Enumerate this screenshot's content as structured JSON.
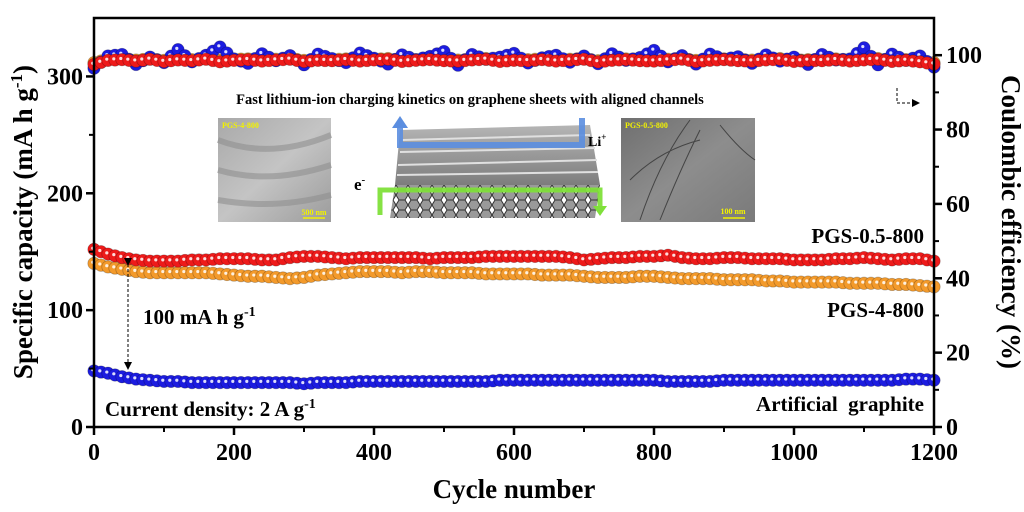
{
  "chart_data": {
    "type": "scatter",
    "title": "Fast lithium-ion charging kinetics on graphene sheets with aligned channels",
    "xlabel": "Cycle number",
    "ylabel_left": {
      "main": "Specific capacity (mA h g",
      "sup": "-1",
      "end": ")"
    },
    "ylabel_right": "Coulombic efficiency (%)",
    "xlim": [
      0,
      1200
    ],
    "ylim_left": [
      0,
      350
    ],
    "ylim_right": [
      0,
      110
    ],
    "x_ticks": [
      0,
      200,
      400,
      600,
      800,
      1000,
      1200
    ],
    "y_left_ticks": [
      0,
      100,
      200,
      300
    ],
    "y_right_ticks": [
      0,
      20,
      40,
      60,
      80,
      100
    ],
    "grid": false,
    "x_step": 20,
    "colors": {
      "PGS-0.5-800": "#ee1a1a",
      "PGS-4-800": "#f39a2b",
      "Artificial graphite": "#1c1ce0"
    },
    "series": [
      {
        "name": "PGS-4-800",
        "axis": "right",
        "kind": "coulombic_efficiency",
        "values": [
          98.0,
          98.9,
          99.1,
          98.7,
          99.0,
          98.6,
          99.0,
          98.8,
          99.1,
          98.6,
          98.9,
          99.0,
          98.7,
          98.9,
          99.1,
          98.6,
          98.8,
          98.8,
          99.0,
          98.7,
          98.9,
          99.1,
          98.6,
          98.8,
          99.0,
          98.8,
          98.7,
          98.9,
          99.1,
          98.6,
          98.8,
          98.8,
          99.0,
          98.7,
          98.9,
          99.1,
          98.5,
          98.8,
          99.0,
          98.8,
          98.7,
          98.9,
          99.1,
          98.6,
          98.8,
          99.0,
          98.8,
          98.7,
          98.9,
          99.1,
          98.6,
          98.8,
          98.8,
          99.0,
          98.7,
          98.9,
          99.1,
          98.6,
          98.8,
          98.5,
          98.0
        ]
      },
      {
        "name": "Artificial graphite",
        "axis": "right",
        "kind": "coulombic_efficiency",
        "values": [
          96.5,
          99.8,
          100.2,
          97.5,
          99.5,
          98.0,
          101.5,
          98.2,
          100.0,
          102.2,
          99.0,
          97.8,
          100.4,
          98.5,
          99.9,
          97.4,
          100.3,
          99.1,
          98.0,
          100.6,
          99.2,
          97.6,
          100.1,
          98.8,
          99.7,
          101.0,
          97.3,
          100.2,
          98.9,
          99.5,
          100.5,
          97.9,
          99.3,
          100.0,
          98.1,
          99.8,
          97.7,
          100.4,
          98.6,
          99.4,
          101.3,
          98.2,
          99.9,
          97.6,
          100.3,
          98.9,
          99.6,
          97.8,
          100.1,
          98.4,
          99.5,
          97.5,
          100.2,
          98.7,
          99.0,
          102.0,
          97.4,
          100.3,
          98.6,
          99.8,
          96.8
        ]
      },
      {
        "name": "PGS-0.5-800",
        "axis": "right",
        "kind": "coulombic_efficiency",
        "values": [
          97.5,
          98.6,
          98.8,
          98.4,
          98.9,
          98.3,
          98.7,
          98.5,
          98.9,
          98.2,
          98.6,
          98.8,
          98.4,
          98.7,
          98.9,
          98.3,
          98.6,
          98.5,
          98.8,
          98.4,
          98.7,
          98.9,
          98.3,
          98.6,
          98.8,
          98.5,
          98.4,
          98.7,
          98.9,
          98.3,
          98.6,
          98.5,
          98.8,
          98.4,
          98.7,
          98.9,
          98.2,
          98.6,
          98.8,
          98.5,
          98.4,
          98.7,
          98.9,
          98.3,
          98.6,
          98.8,
          98.5,
          98.4,
          98.7,
          98.9,
          98.3,
          98.6,
          98.5,
          98.8,
          98.4,
          98.7,
          98.9,
          98.3,
          98.6,
          98.2,
          97.6
        ]
      },
      {
        "name": "PGS-4-800",
        "axis": "left",
        "kind": "capacity",
        "values": [
          140,
          137,
          135,
          133,
          132,
          132,
          132,
          132,
          132,
          131,
          130,
          129,
          129,
          128,
          127,
          128,
          130,
          131,
          132,
          133,
          133,
          133,
          132,
          133,
          133,
          132,
          132,
          132,
          131,
          131,
          131,
          131,
          130,
          130,
          130,
          129,
          128,
          128,
          128,
          129,
          129,
          128,
          127,
          127,
          127,
          126,
          126,
          126,
          125,
          125,
          124,
          124,
          124,
          124,
          123,
          123,
          123,
          122,
          122,
          121,
          120
        ]
      },
      {
        "name": "PGS-0.5-800",
        "axis": "left",
        "kind": "capacity",
        "values": [
          152,
          148,
          145,
          143,
          142,
          142,
          142,
          143,
          143,
          144,
          144,
          144,
          143,
          143,
          145,
          146,
          146,
          145,
          144,
          145,
          145,
          145,
          145,
          145,
          144,
          145,
          145,
          145,
          146,
          146,
          146,
          146,
          146,
          146,
          145,
          143,
          144,
          145,
          145,
          146,
          146,
          147,
          145,
          144,
          144,
          145,
          145,
          144,
          144,
          144,
          143,
          143,
          143,
          144,
          144,
          145,
          144,
          143,
          144,
          144,
          142
        ]
      },
      {
        "name": "Artificial graphite",
        "axis": "left",
        "kind": "capacity",
        "values": [
          48,
          46,
          43,
          41,
          40,
          39,
          39,
          38,
          38,
          38,
          38,
          38,
          38,
          38,
          38,
          37,
          38,
          38,
          38,
          39,
          39,
          39,
          39,
          39,
          39,
          39,
          39,
          39,
          39,
          40,
          40,
          40,
          40,
          40,
          40,
          40,
          40,
          40,
          40,
          40,
          40,
          39,
          39,
          39,
          39,
          40,
          40,
          40,
          40,
          40,
          40,
          40,
          40,
          40,
          40,
          40,
          40,
          40,
          41,
          41,
          40
        ]
      }
    ],
    "annotations": {
      "label_pgs05": "PGS-0.5-800",
      "label_pgs4": "PGS-4-800",
      "label_graphite": "Artificial  graphite",
      "gap_main": "100 mA h g",
      "gap_sup": "-1",
      "current_main": "Current density: 2 A g",
      "current_sup": "-1",
      "inset_left_label": "PGS-4-800",
      "inset_left_scale": "500 nm",
      "inset_right_label": "PGS-0.5-800",
      "inset_right_scale": "100 nm",
      "li_main": "Li",
      "li_sup": "+",
      "e_main": "e",
      "e_sup": "-"
    }
  }
}
